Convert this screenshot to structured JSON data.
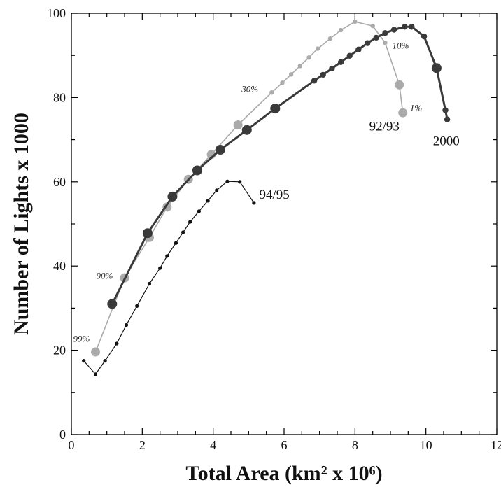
{
  "chart_data": {
    "type": "line",
    "xlabel": "Total Area (km² x 10⁶)",
    "ylabel": "Number of Lights x 1000",
    "xlim": [
      0,
      12
    ],
    "ylim": [
      0,
      100
    ],
    "xticks": [
      0,
      2,
      4,
      6,
      8,
      10,
      12
    ],
    "yticks": [
      0,
      20,
      40,
      60,
      80,
      100
    ],
    "grid": false,
    "series": [
      {
        "name": "94/95",
        "color": "#111111",
        "marker": "small",
        "points": [
          [
            0.35,
            17.5
          ],
          [
            0.68,
            14.3
          ],
          [
            0.95,
            17.5
          ],
          [
            1.28,
            21.6
          ],
          [
            1.55,
            26.0
          ],
          [
            1.85,
            30.5
          ],
          [
            2.2,
            35.8
          ],
          [
            2.5,
            39.5
          ],
          [
            2.7,
            42.4
          ],
          [
            2.95,
            45.5
          ],
          [
            3.15,
            48.0
          ],
          [
            3.35,
            50.5
          ],
          [
            3.6,
            53.0
          ],
          [
            3.85,
            55.5
          ],
          [
            4.1,
            58.0
          ],
          [
            4.4,
            60.1
          ],
          [
            4.75,
            60.0
          ],
          [
            5.15,
            55.0
          ]
        ]
      },
      {
        "name": "92/93",
        "color": "#aaaaaa",
        "marker": "medium",
        "points": [
          [
            0.68,
            19.6
          ],
          [
            1.5,
            37.2
          ],
          [
            2.2,
            46.8
          ],
          [
            2.7,
            54.0
          ],
          [
            3.3,
            60.6
          ],
          [
            3.95,
            66.5
          ],
          [
            4.7,
            73.5
          ],
          [
            5.65,
            81.2
          ],
          [
            5.95,
            83.5
          ],
          [
            6.2,
            85.5
          ],
          [
            6.45,
            87.5
          ],
          [
            6.7,
            89.5
          ],
          [
            6.95,
            91.6
          ],
          [
            7.3,
            94.0
          ],
          [
            7.6,
            96.0
          ],
          [
            8.0,
            98.0
          ],
          [
            8.5,
            97.0
          ],
          [
            8.85,
            93.0
          ],
          [
            9.25,
            83.0
          ],
          [
            9.35,
            76.4
          ]
        ]
      },
      {
        "name": "2000",
        "color": "#3a3a3a",
        "marker": "large",
        "points": [
          [
            1.15,
            31.0
          ],
          [
            2.15,
            47.8
          ],
          [
            2.85,
            56.5
          ],
          [
            3.55,
            62.7
          ],
          [
            4.2,
            67.6
          ],
          [
            4.95,
            72.3
          ],
          [
            5.75,
            77.4
          ],
          [
            6.85,
            84.0
          ],
          [
            7.1,
            85.4
          ],
          [
            7.35,
            86.9
          ],
          [
            7.6,
            88.4
          ],
          [
            7.85,
            89.9
          ],
          [
            8.1,
            91.4
          ],
          [
            8.35,
            92.9
          ],
          [
            8.6,
            94.2
          ],
          [
            8.85,
            95.3
          ],
          [
            9.1,
            96.1
          ],
          [
            9.4,
            96.8
          ],
          [
            9.6,
            96.8
          ],
          [
            9.95,
            94.5
          ],
          [
            10.3,
            87.0
          ],
          [
            10.55,
            77.0
          ],
          [
            10.6,
            74.8
          ]
        ]
      }
    ],
    "series_labels": [
      {
        "text": "94/95",
        "x": 5.3,
        "y": 56.0
      },
      {
        "text": "92/93",
        "x": 8.4,
        "y": 72.2
      },
      {
        "text": "2000",
        "x": 10.2,
        "y": 68.7
      }
    ],
    "annotations": [
      {
        "text": "99%",
        "x": 0.05,
        "y": 22.0
      },
      {
        "text": "90%",
        "x": 0.7,
        "y": 37.0
      },
      {
        "text": "30%",
        "x": 4.8,
        "y": 81.3
      },
      {
        "text": "10%",
        "x": 9.05,
        "y": 91.6
      },
      {
        "text": "1%",
        "x": 9.55,
        "y": 76.8
      }
    ]
  }
}
